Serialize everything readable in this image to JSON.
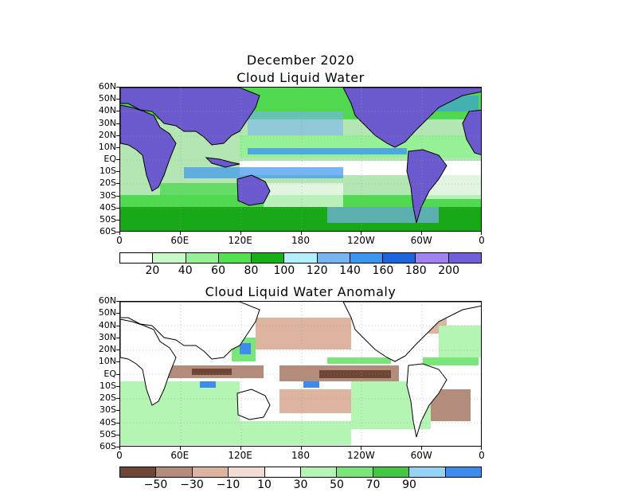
{
  "main_title": "December 2020",
  "panel1": {
    "title": "Cloud Liquid Water",
    "colorbar_colors": [
      "#ffffff",
      "#c8fac8",
      "#96f096",
      "#50e050",
      "#18b018",
      "#b4f0fa",
      "#78b4f0",
      "#3c96f0",
      "#1e64dc",
      "#a082f0",
      "#7060d8"
    ],
    "colorbar_labels": [
      "20",
      "40",
      "60",
      "80",
      "100",
      "120",
      "140",
      "160",
      "180",
      "200"
    ]
  },
  "panel2": {
    "title": "Cloud Liquid Water Anomaly",
    "colorbar_colors": [
      "#6e4636",
      "#b48c7c",
      "#dcb4a0",
      "#f0dcd2",
      "#ffffff",
      "#b4f5b4",
      "#78e678",
      "#40c840",
      "#96d2f5",
      "#3c8cf0"
    ],
    "colorbar_labels": [
      "−50",
      "−30",
      "−10",
      "10",
      "30",
      "50",
      "70",
      "90"
    ]
  },
  "y_axis_labels": [
    "60N",
    "50N",
    "40N",
    "30N",
    "20N",
    "10N",
    "EQ",
    "10S",
    "20S",
    "30S",
    "40S",
    "50S",
    "60S"
  ],
  "x_axis_labels": [
    "0",
    "60E",
    "120E",
    "180",
    "120W",
    "60W",
    "0"
  ],
  "colors": {
    "land_panel1": "#6a5acd",
    "coast": "#000000"
  }
}
